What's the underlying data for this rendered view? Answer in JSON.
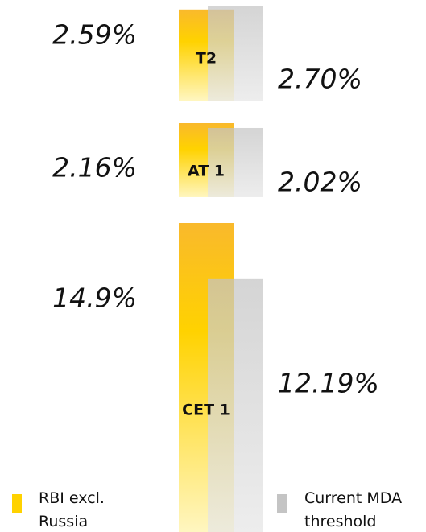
{
  "chart_data": {
    "type": "bar",
    "categories": [
      "CET 1",
      "AT 1",
      "T2"
    ],
    "series": [
      {
        "name": "RBI excl. Russia",
        "color": "#ffd200",
        "values": [
          14.9,
          2.16,
          2.59
        ],
        "value_labels": [
          "14.9%",
          "2.16%",
          "2.59%"
        ]
      },
      {
        "name": "Current MDA threshold",
        "color": "#c4c4c4",
        "values": [
          12.19,
          2.02,
          2.7
        ],
        "value_labels": [
          "12.19%",
          "2.02%",
          "2.70%"
        ]
      }
    ]
  }
}
